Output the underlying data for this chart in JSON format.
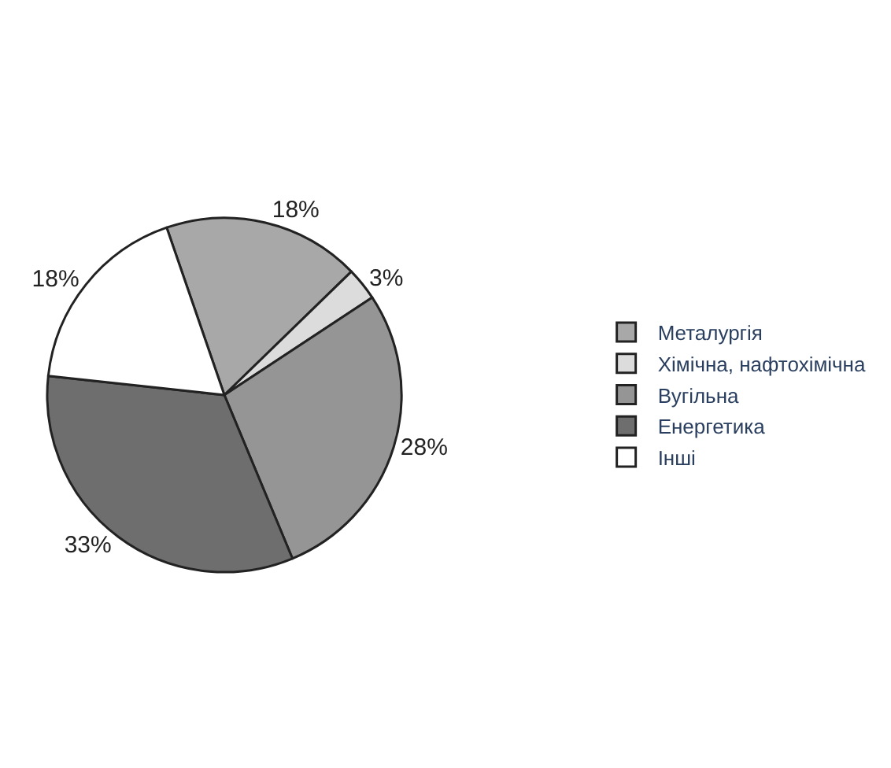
{
  "chart_data": {
    "type": "pie",
    "categories": [
      "Металургія",
      "Хімічна, нафтохімічна",
      "Вугільна",
      "Енергетика",
      "Інші"
    ],
    "values": [
      18,
      3,
      28,
      33,
      18
    ],
    "colors": [
      "#a8a8a8",
      "#dcdcdc",
      "#959595",
      "#6e6e6e",
      "#ffffff"
    ],
    "value_labels": [
      "18%",
      "3%",
      "28%",
      "33%",
      "18%"
    ],
    "legend": "right"
  }
}
